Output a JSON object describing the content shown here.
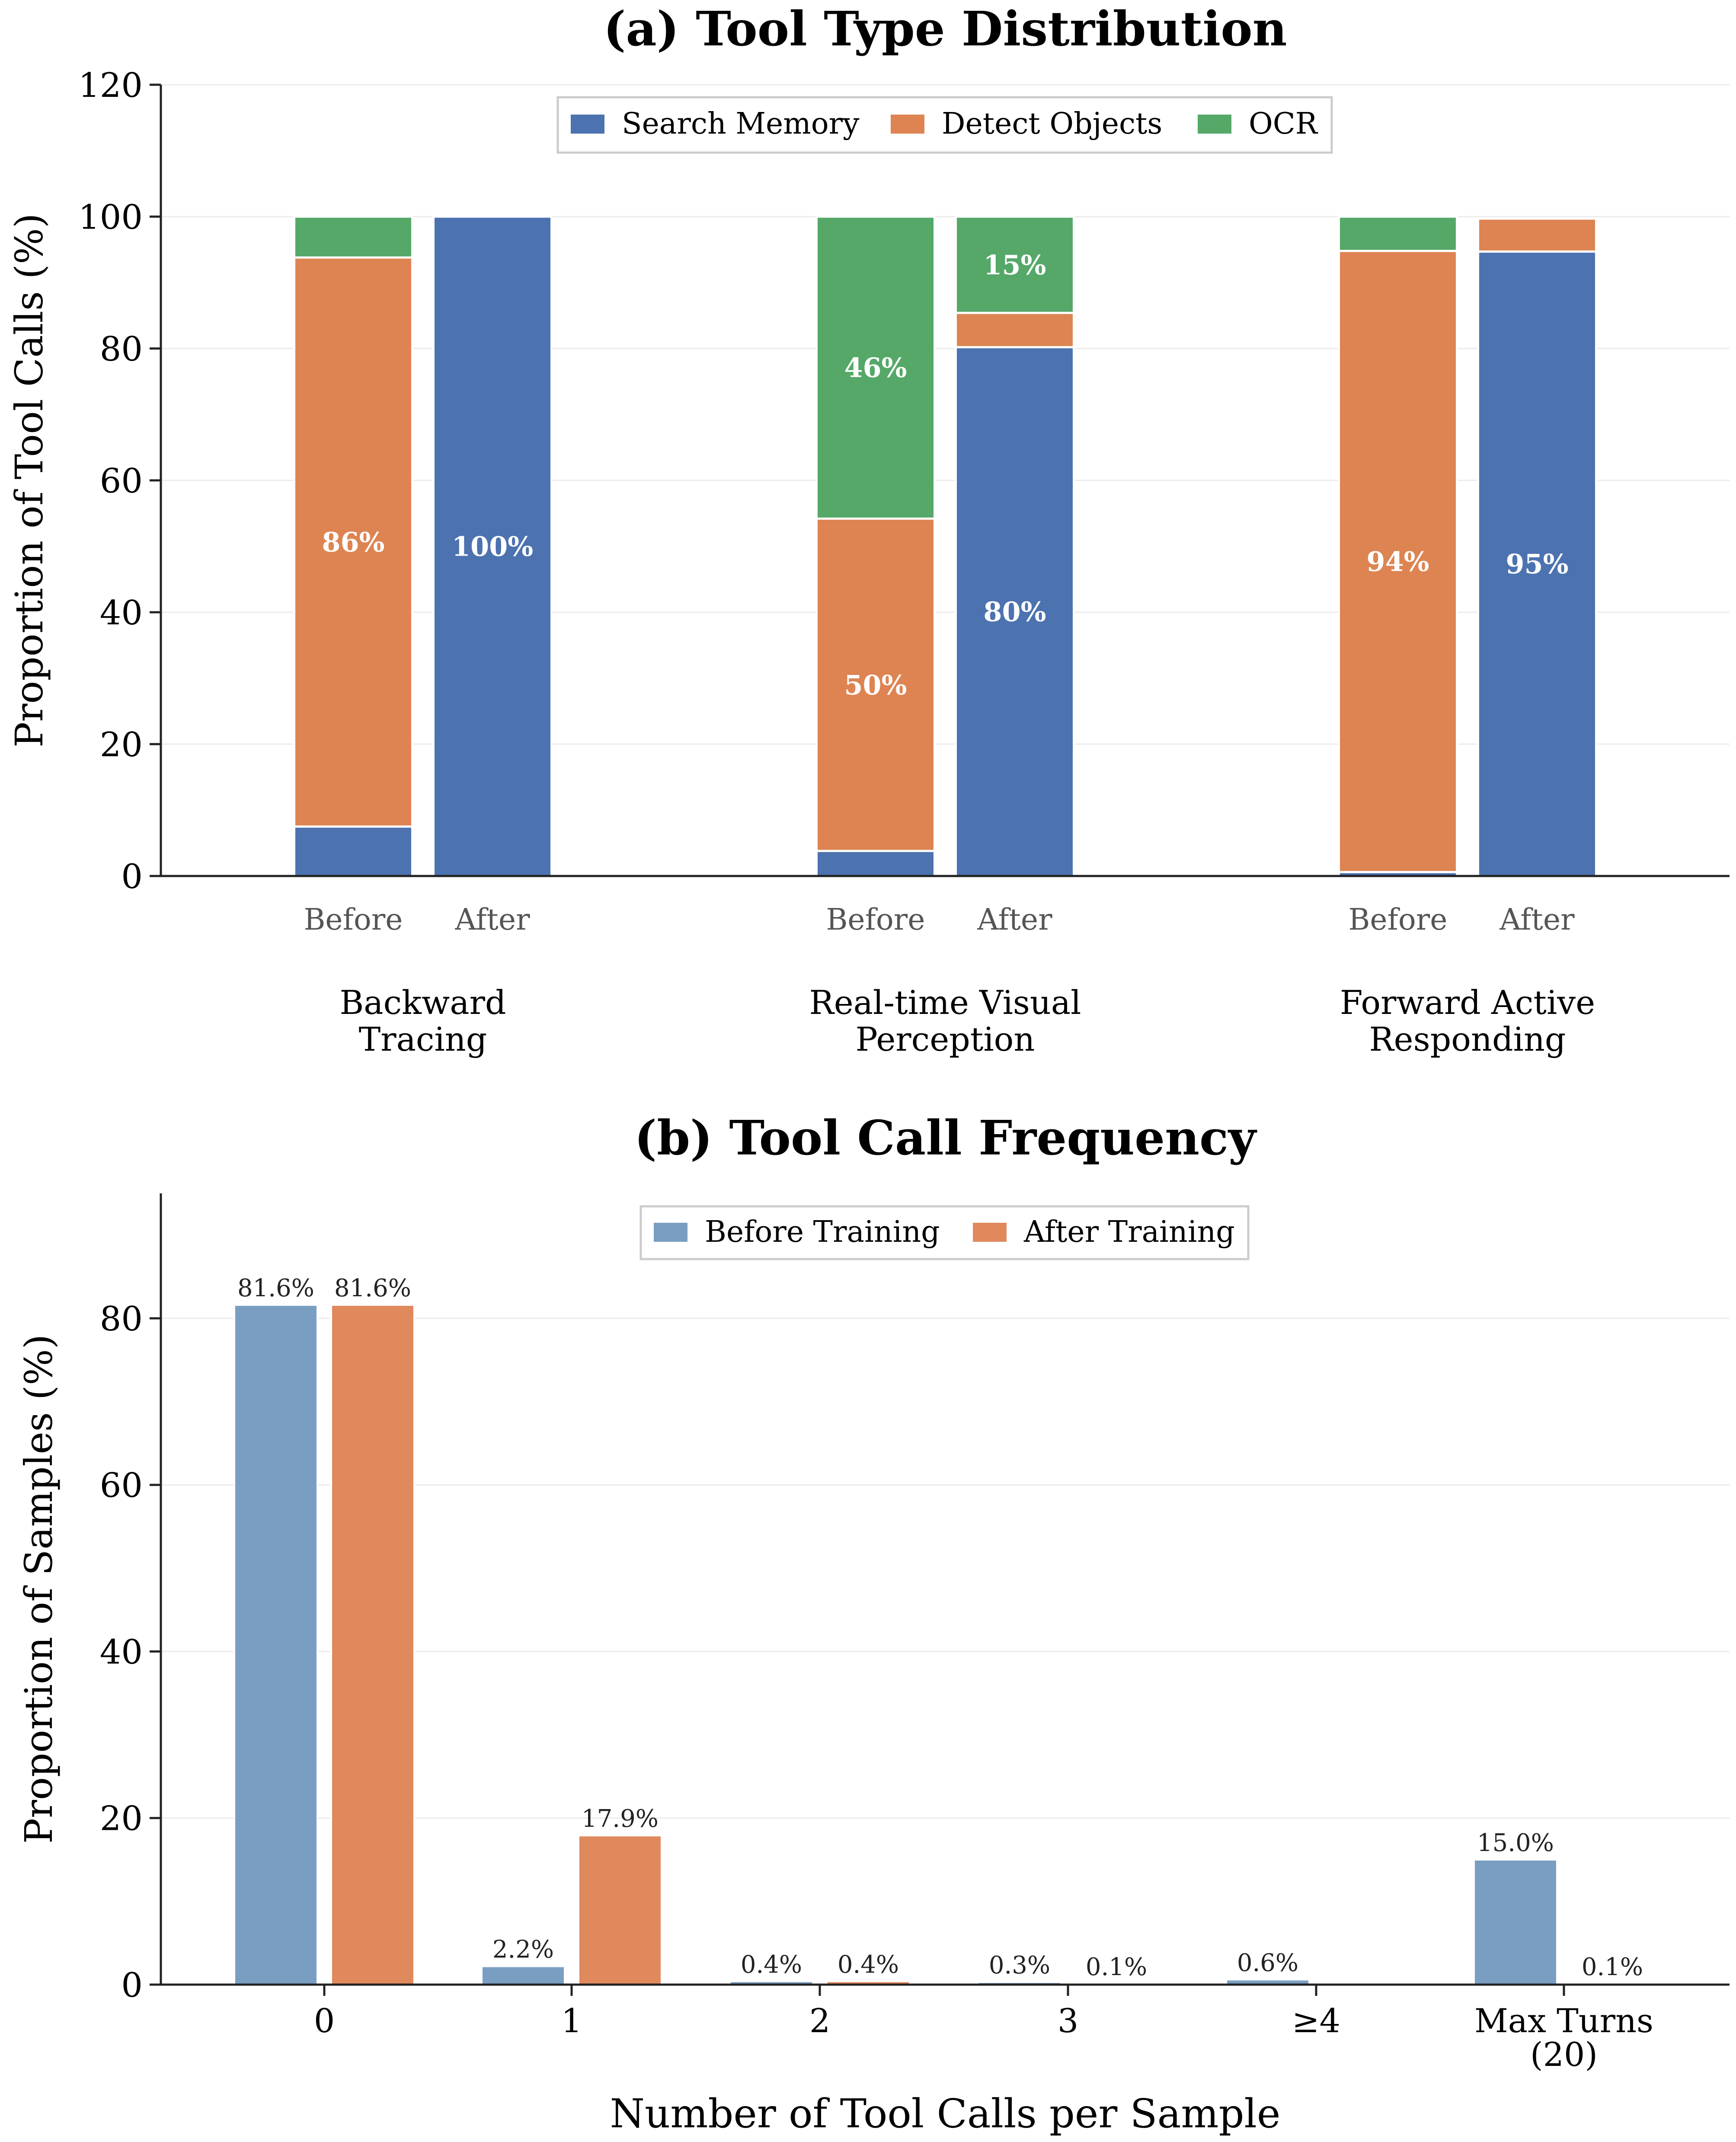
{
  "colors": {
    "search_memory": "#4c72b0",
    "detect_objects": "#dd8452",
    "ocr": "#55a868",
    "before_training": "#7a9ec2",
    "after_training": "#e0895d",
    "grid": "#ebebeb",
    "axis": "#222222"
  },
  "chart_data": [
    {
      "type": "bar",
      "stacked": true,
      "title": "(a) Tool Type Distribution",
      "xlabel": "",
      "ylabel": "Proportion of Tool Calls (%)",
      "ylim": [
        0,
        120
      ],
      "yticks": [
        "0",
        "20",
        "40",
        "60",
        "80",
        "100",
        "120"
      ],
      "grid": true,
      "legend_position": "top-center",
      "legend": [
        "Search Memory",
        "Detect Objects",
        "OCR"
      ],
      "groups": [
        {
          "label": [
            "Backward",
            "Tracing"
          ],
          "bars": [
            {
              "label": "Before",
              "search_memory": 7.5,
              "detect_objects": 86.3,
              "ocr": 6.2,
              "text_labels": {
                "search_memory": "",
                "detect_objects": "86%",
                "ocr": ""
              }
            },
            {
              "label": "After",
              "search_memory": 100,
              "detect_objects": 0,
              "ocr": 0,
              "text_labels": {
                "search_memory": "100%",
                "detect_objects": "",
                "ocr": ""
              }
            }
          ]
        },
        {
          "label": [
            "Real-time Visual",
            "Perception"
          ],
          "bars": [
            {
              "label": "Before",
              "search_memory": 3.8,
              "detect_objects": 50.4,
              "ocr": 45.8,
              "text_labels": {
                "search_memory": "",
                "detect_objects": "50%",
                "ocr": "46%"
              }
            },
            {
              "label": "After",
              "search_memory": 80.2,
              "detect_objects": 5.2,
              "ocr": 14.6,
              "text_labels": {
                "search_memory": "80%",
                "detect_objects": "",
                "ocr": "15%"
              }
            }
          ]
        },
        {
          "label": [
            "Forward Active",
            "Responding"
          ],
          "bars": [
            {
              "label": "Before",
              "search_memory": 0.6,
              "detect_objects": 94.2,
              "ocr": 5.2,
              "text_labels": {
                "search_memory": "",
                "detect_objects": "94%",
                "ocr": ""
              }
            },
            {
              "label": "After",
              "search_memory": 94.7,
              "detect_objects": 5.0,
              "ocr": 0,
              "text_labels": {
                "search_memory": "95%",
                "detect_objects": "",
                "ocr": ""
              }
            }
          ]
        }
      ]
    },
    {
      "type": "bar",
      "title": "(b) Tool Call Frequency",
      "xlabel": "Number of Tool Calls per Sample",
      "ylabel": "Proportion of Samples (%)",
      "ylim": [
        0,
        95
      ],
      "yticks": [
        "0",
        "20",
        "40",
        "60",
        "80"
      ],
      "grid": true,
      "legend_position": "top-center",
      "categories": [
        [
          "0"
        ],
        [
          "1"
        ],
        [
          "2"
        ],
        [
          "3"
        ],
        [
          "≥4"
        ],
        [
          "Max Turns",
          "(20)"
        ]
      ],
      "series": [
        {
          "name": "Before Training",
          "values": [
            81.6,
            2.2,
            0.4,
            0.3,
            0.6,
            15.0
          ],
          "labels": [
            "81.6%",
            "2.2%",
            "0.4%",
            "0.3%",
            "0.6%",
            "15.0%"
          ]
        },
        {
          "name": "After Training",
          "values": [
            81.6,
            17.9,
            0.4,
            0.1,
            0.0,
            0.1
          ],
          "labels": [
            "81.6%",
            "17.9%",
            "0.4%",
            "0.1%",
            "",
            "0.1%"
          ]
        }
      ]
    }
  ]
}
